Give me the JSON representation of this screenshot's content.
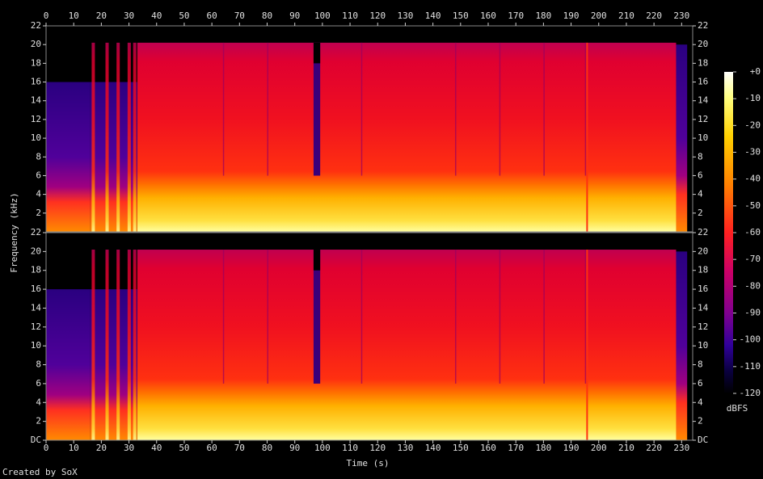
{
  "chart_data": {
    "type": "spectrogram",
    "x_label": "Time (s)",
    "y_label": "Frequency (kHz)",
    "xlim": [
      0,
      234
    ],
    "xticks": [
      0,
      10,
      20,
      30,
      40,
      50,
      60,
      70,
      80,
      90,
      100,
      110,
      120,
      130,
      140,
      150,
      160,
      170,
      180,
      190,
      200,
      210,
      220,
      230
    ],
    "channels": [
      {
        "ylim": [
          0,
          22
        ],
        "yticks": [
          2,
          4,
          6,
          8,
          10,
          12,
          14,
          16,
          18,
          20,
          22
        ]
      },
      {
        "ylim": [
          0,
          22
        ],
        "yticks": [
          {
            "value": 0,
            "label": "DC"
          },
          2,
          4,
          6,
          8,
          10,
          12,
          14,
          16,
          18,
          20,
          22
        ]
      }
    ],
    "colorbar": {
      "label": "dBFS",
      "lim": [
        -120,
        0
      ],
      "ticks": [
        {
          "value": 0,
          "label": "+0"
        },
        -10,
        -20,
        -30,
        -40,
        -50,
        -60,
        -70,
        -80,
        -90,
        -100,
        -110,
        -120
      ]
    },
    "footer": "Created by SoX"
  }
}
